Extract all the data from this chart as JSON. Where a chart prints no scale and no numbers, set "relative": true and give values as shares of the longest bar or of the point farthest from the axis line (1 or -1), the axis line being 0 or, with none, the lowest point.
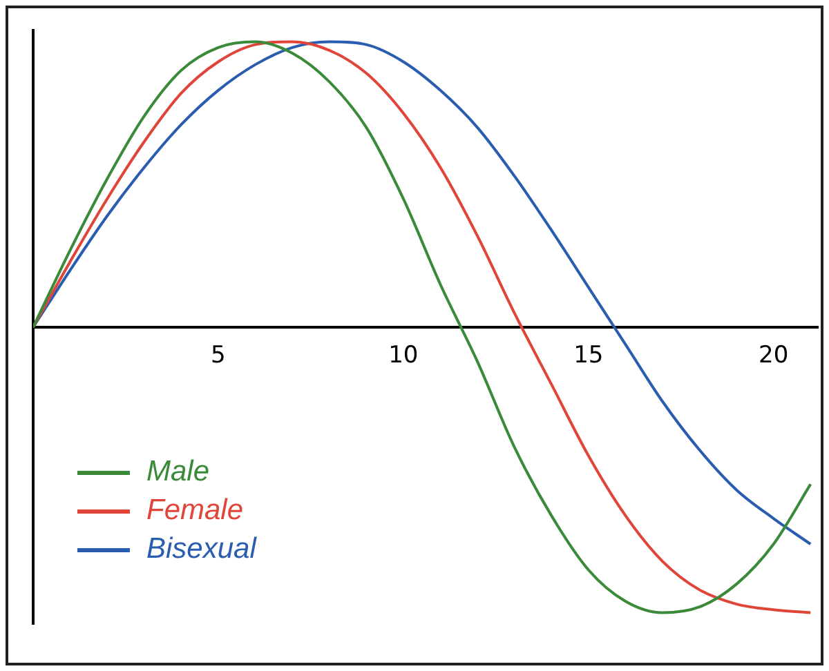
{
  "chart_data": {
    "type": "line",
    "relative": true,
    "x": [
      0,
      1,
      2,
      3,
      4,
      5,
      6,
      7,
      8,
      9,
      10,
      11,
      12,
      13,
      14,
      15,
      16,
      17,
      18,
      19,
      20,
      21
    ],
    "xlim": [
      0,
      21.2
    ],
    "xticks": [
      5,
      10,
      15,
      20
    ],
    "series": [
      {
        "name": "Male",
        "color": "#3a8a3a",
        "values": [
          0,
          0.27,
          0.52,
          0.74,
          0.9,
          0.98,
          1,
          0.96,
          0.86,
          0.7,
          0.45,
          0.15,
          -0.12,
          -0.42,
          -0.66,
          -0.85,
          -0.96,
          -1,
          -0.98,
          -0.9,
          -0.76,
          -0.55
        ]
      },
      {
        "name": "Female",
        "color": "#e0453a",
        "values": [
          0,
          0.23,
          0.45,
          0.65,
          0.82,
          0.93,
          0.99,
          1,
          0.97,
          0.89,
          0.75,
          0.56,
          0.32,
          0.05,
          -0.2,
          -0.45,
          -0.66,
          -0.82,
          -0.92,
          -0.97,
          -0.99,
          -1
        ]
      },
      {
        "name": "Bisexual",
        "color": "#2a5db0",
        "values": [
          0,
          0.2,
          0.39,
          0.56,
          0.71,
          0.83,
          0.92,
          0.98,
          1,
          0.99,
          0.93,
          0.83,
          0.7,
          0.53,
          0.34,
          0.14,
          -0.06,
          -0.26,
          -0.43,
          -0.57,
          -0.67,
          -0.76
        ]
      }
    ],
    "grid": false,
    "legend": "bottom left",
    "marker": "none",
    "line_style": "solid"
  }
}
